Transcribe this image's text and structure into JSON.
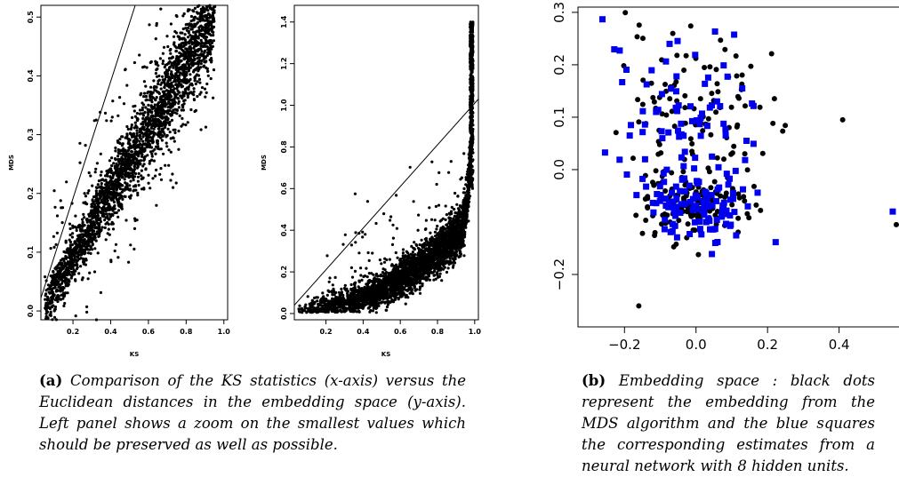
{
  "chart_data": [
    {
      "type": "scatter",
      "panel": "left",
      "xlabel": "KS",
      "ylabel": "MDS",
      "xlim": [
        0.03,
        1.02
      ],
      "ylim": [
        -0.015,
        0.52
      ],
      "xticks": [
        "0.2",
        "0.4",
        "0.6",
        "0.8",
        "1.0"
      ],
      "yticks": [
        "0.0",
        "0.1",
        "0.2",
        "0.3",
        "0.4",
        "0.5"
      ],
      "reference_line": {
        "x": [
          0.03,
          0.53
        ],
        "y": [
          0.022,
          0.52
        ]
      },
      "trend": "dense band rising from (0.05,0.02) to (0.95,0.52); sparse scatter above and below",
      "point_color": "#000000"
    },
    {
      "type": "scatter",
      "panel": "middle",
      "xlabel": "KS",
      "ylabel": "MDS",
      "xlim": [
        0.03,
        1.02
      ],
      "ylim": [
        -0.03,
        1.48
      ],
      "xticks": [
        "0.2",
        "0.4",
        "0.6",
        "0.8",
        "1.0"
      ],
      "yticks": [
        "0.0",
        "0.2",
        "0.4",
        "0.6",
        "0.8",
        "1.0",
        "1.2",
        "1.4"
      ],
      "reference_line": {
        "x": [
          0.03,
          1.02
        ],
        "y": [
          0.04,
          1.03
        ]
      },
      "trend": "convex curve from (0.05,0.02) to (0.95,0.6), rising steeply to 1.4 at KS≈0.99",
      "point_color": "#000000"
    },
    {
      "type": "scatter",
      "panel": "right",
      "xlim": [
        -0.33,
        0.57
      ],
      "ylim": [
        -0.3,
        0.31
      ],
      "xticks": [
        "−0.2",
        "0.0",
        "0.2",
        "0.4"
      ],
      "yticks": [
        "−0.2",
        "0.0",
        "0.1",
        "0.2",
        "0.3"
      ],
      "series": [
        {
          "name": "MDS embedding",
          "marker": "circle",
          "color": "#000000"
        },
        {
          "name": "neural network estimates",
          "marker": "square",
          "color": "#0000ee"
        }
      ],
      "outliers": [
        {
          "series": "neural network estimates",
          "x": 0.55,
          "y": -0.08
        },
        {
          "series": "MDS embedding",
          "x": 0.56,
          "y": -0.105
        },
        {
          "series": "MDS embedding",
          "x": -0.16,
          "y": -0.26
        },
        {
          "series": "MDS embedding",
          "x": 0.41,
          "y": 0.095
        }
      ]
    }
  ],
  "captions": {
    "a_label": "(a)",
    "a_text": "Comparison of the KS statistics (x-axis) versus the Euclidean distances in the embedding space (y-axis). Left panel shows a zoom on the smallest values which should be preserved as well as possible.",
    "b_label": "(b)",
    "b_text": "Embedding space : black dots represent the embedding from the MDS algorithm and the blue squares the corresponding estimates from a neural network with 8 hidden units."
  }
}
